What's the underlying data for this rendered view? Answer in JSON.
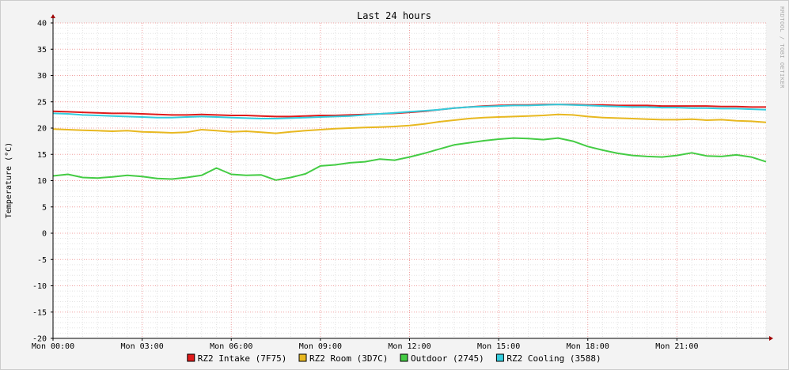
{
  "chart_data": {
    "type": "line",
    "title": "Last 24 hours",
    "ylabel": "Temperature (°C)",
    "watermark": "RRDTOOL / TOBI OETIKER",
    "ylim": [
      -20,
      40
    ],
    "y_major_ticks": [
      -20,
      -15,
      -10,
      -5,
      0,
      5,
      10,
      15,
      20,
      25,
      30,
      35,
      40
    ],
    "xlim_hours": [
      0,
      24
    ],
    "x_tick_hours": [
      0,
      3,
      6,
      9,
      12,
      15,
      18,
      21
    ],
    "x_tick_labels": [
      "Mon 00:00",
      "Mon 03:00",
      "Mon 06:00",
      "Mon 09:00",
      "Mon 12:00",
      "Mon 15:00",
      "Mon 18:00",
      "Mon 21:00"
    ],
    "grid": true,
    "legend_position": "bottom",
    "x_hours": [
      0,
      0.5,
      1,
      1.5,
      2,
      2.5,
      3,
      3.5,
      4,
      4.5,
      5,
      5.5,
      6,
      6.5,
      7,
      7.5,
      8,
      8.5,
      9,
      9.5,
      10,
      10.5,
      11,
      11.5,
      12,
      12.5,
      13,
      13.5,
      14,
      14.5,
      15,
      15.5,
      16,
      16.5,
      17,
      17.5,
      18,
      18.5,
      19,
      19.5,
      20,
      20.5,
      21,
      21.5,
      22,
      22.5,
      23,
      23.5,
      24
    ],
    "series": [
      {
        "name": "RZ2 Intake (7F75)",
        "color": "#e01b1b",
        "values": [
          23.2,
          23.1,
          23.0,
          22.9,
          22.8,
          22.8,
          22.7,
          22.6,
          22.5,
          22.5,
          22.6,
          22.5,
          22.4,
          22.4,
          22.3,
          22.2,
          22.2,
          22.3,
          22.4,
          22.4,
          22.5,
          22.6,
          22.7,
          22.8,
          23.0,
          23.2,
          23.5,
          23.8,
          24.0,
          24.2,
          24.3,
          24.4,
          24.4,
          24.5,
          24.5,
          24.5,
          24.4,
          24.4,
          24.3,
          24.3,
          24.3,
          24.2,
          24.2,
          24.2,
          24.2,
          24.1,
          24.1,
          24.0,
          24.0
        ]
      },
      {
        "name": "RZ2 Room (3D7C)",
        "color": "#e8b820",
        "values": [
          19.8,
          19.7,
          19.6,
          19.5,
          19.4,
          19.5,
          19.3,
          19.2,
          19.1,
          19.2,
          19.7,
          19.5,
          19.3,
          19.4,
          19.2,
          19.0,
          19.3,
          19.5,
          19.7,
          19.9,
          20.0,
          20.1,
          20.2,
          20.3,
          20.5,
          20.8,
          21.2,
          21.5,
          21.8,
          22.0,
          22.1,
          22.2,
          22.3,
          22.4,
          22.6,
          22.5,
          22.2,
          22.0,
          21.9,
          21.8,
          21.7,
          21.6,
          21.6,
          21.7,
          21.5,
          21.6,
          21.4,
          21.3,
          21.1
        ]
      },
      {
        "name": "Outdoor (2745)",
        "color": "#44cc44",
        "values": [
          10.9,
          11.2,
          10.6,
          10.5,
          10.7,
          11.0,
          10.8,
          10.4,
          10.3,
          10.6,
          11.0,
          12.4,
          11.2,
          11.0,
          11.1,
          10.1,
          10.6,
          11.3,
          12.8,
          13.0,
          13.4,
          13.6,
          14.1,
          13.9,
          14.5,
          15.2,
          16.0,
          16.8,
          17.2,
          17.6,
          17.9,
          18.1,
          18.0,
          17.8,
          18.1,
          17.5,
          16.5,
          15.8,
          15.2,
          14.8,
          14.6,
          14.5,
          14.8,
          15.3,
          14.7,
          14.6,
          14.9,
          14.5,
          13.6
        ]
      },
      {
        "name": "RZ2 Cooling (3588)",
        "color": "#33ccdd",
        "values": [
          22.8,
          22.7,
          22.5,
          22.4,
          22.3,
          22.2,
          22.1,
          22.0,
          22.0,
          22.1,
          22.2,
          22.1,
          22.0,
          21.9,
          21.8,
          21.8,
          21.9,
          22.0,
          22.1,
          22.2,
          22.3,
          22.5,
          22.7,
          22.9,
          23.1,
          23.3,
          23.5,
          23.8,
          24.0,
          24.1,
          24.2,
          24.3,
          24.3,
          24.4,
          24.5,
          24.4,
          24.3,
          24.2,
          24.1,
          24.0,
          24.0,
          23.9,
          23.9,
          23.8,
          23.8,
          23.7,
          23.7,
          23.6,
          23.5
        ]
      }
    ]
  }
}
